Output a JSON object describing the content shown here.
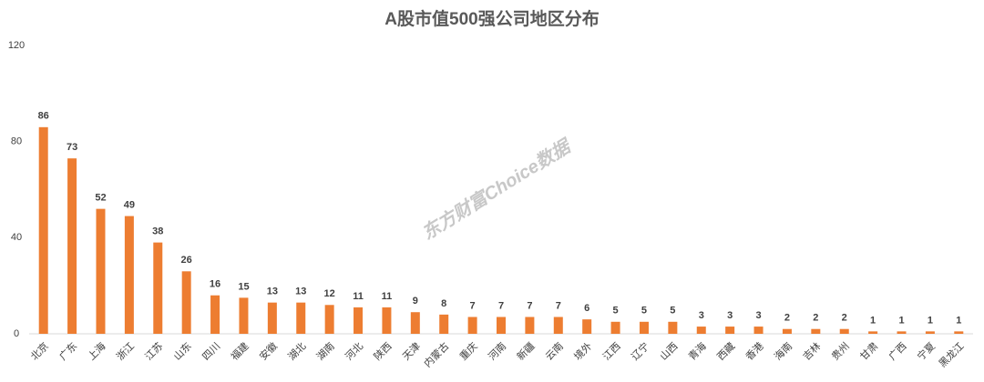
{
  "chart_data": {
    "type": "bar",
    "title": "A股市值500强公司地区分布",
    "watermark": "东方财富Choice数据",
    "categories": [
      "北京",
      "广东",
      "上海",
      "浙江",
      "江苏",
      "山东",
      "四川",
      "福建",
      "安徽",
      "湖北",
      "湖南",
      "河北",
      "陕西",
      "天津",
      "内蒙古",
      "重庆",
      "河南",
      "新疆",
      "云南",
      "境外",
      "江西",
      "辽宁",
      "山西",
      "青海",
      "西藏",
      "香港",
      "海南",
      "吉林",
      "贵州",
      "甘肃",
      "广西",
      "宁夏",
      "黑龙江"
    ],
    "values": [
      86,
      73,
      52,
      49,
      38,
      26,
      16,
      15,
      13,
      13,
      12,
      11,
      11,
      9,
      8,
      7,
      7,
      7,
      7,
      6,
      5,
      5,
      5,
      3,
      3,
      3,
      2,
      2,
      2,
      1,
      1,
      1,
      1
    ],
    "color": "#ed7d31",
    "ylim": [
      0,
      120
    ],
    "yticks": [
      0,
      40,
      80,
      120
    ],
    "grid": false
  }
}
